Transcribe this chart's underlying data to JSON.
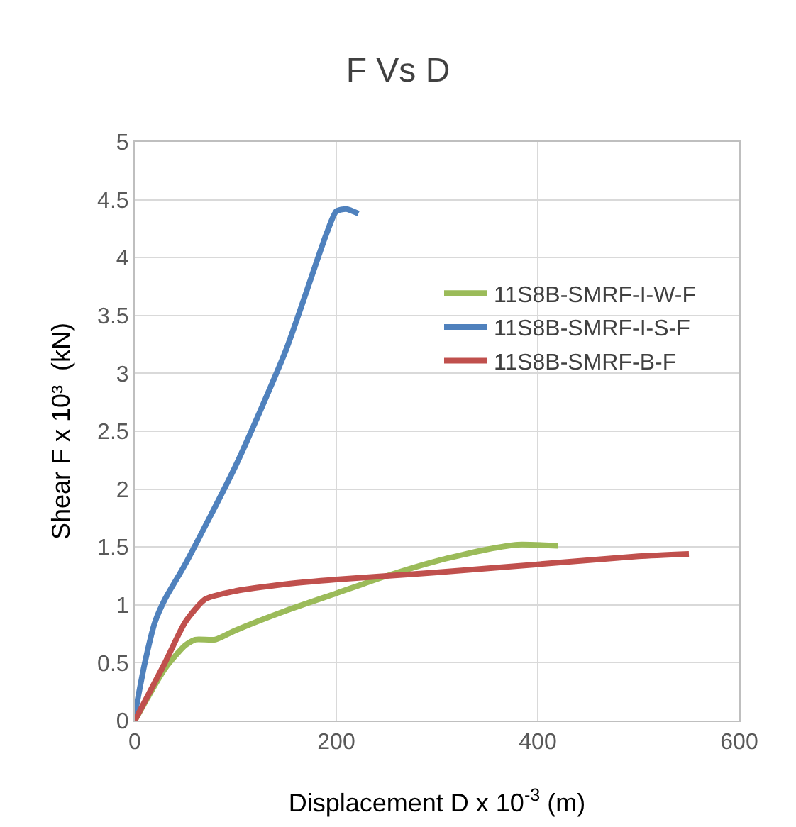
{
  "chart_data": {
    "type": "line",
    "title": "F Vs D",
    "xlabel": "Displacement D x 10$^{-3}$ (m)",
    "ylabel": "Shear F x 10³  (kN)",
    "xlim": [
      0,
      600
    ],
    "xticks": [
      0,
      200,
      400,
      600
    ],
    "ylim": [
      0,
      5
    ],
    "yticks": [
      0,
      0.5,
      1,
      1.5,
      2,
      2.5,
      3,
      3.5,
      4,
      4.5,
      5
    ],
    "grid": true,
    "legend": "right",
    "marker": "none",
    "line_style": "solid",
    "series": [
      {
        "name": "11S8B-SMRF-I-W-F",
        "color": "#9bbb59",
        "x": [
          0,
          30,
          50,
          60,
          80,
          100,
          150,
          200,
          250,
          300,
          350,
          380,
          420
        ],
        "values": [
          0,
          0.45,
          0.65,
          0.7,
          0.7,
          0.78,
          0.95,
          1.1,
          1.25,
          1.38,
          1.48,
          1.52,
          1.51
        ]
      },
      {
        "name": "11S8B-SMRF-I-S-F",
        "color": "#4f81bd",
        "x": [
          0,
          10,
          20,
          30,
          50,
          100,
          150,
          190,
          200,
          210,
          222
        ],
        "values": [
          0.05,
          0.5,
          0.85,
          1.05,
          1.35,
          2.2,
          3.2,
          4.2,
          4.4,
          4.42,
          4.38
        ]
      },
      {
        "name": "11S8B-SMRF-B-F",
        "color": "#c0504d",
        "x": [
          0,
          30,
          50,
          70,
          100,
          150,
          200,
          250,
          300,
          400,
          500,
          550
        ],
        "values": [
          0,
          0.5,
          0.85,
          1.05,
          1.12,
          1.18,
          1.22,
          1.25,
          1.28,
          1.35,
          1.42,
          1.44
        ]
      }
    ]
  }
}
